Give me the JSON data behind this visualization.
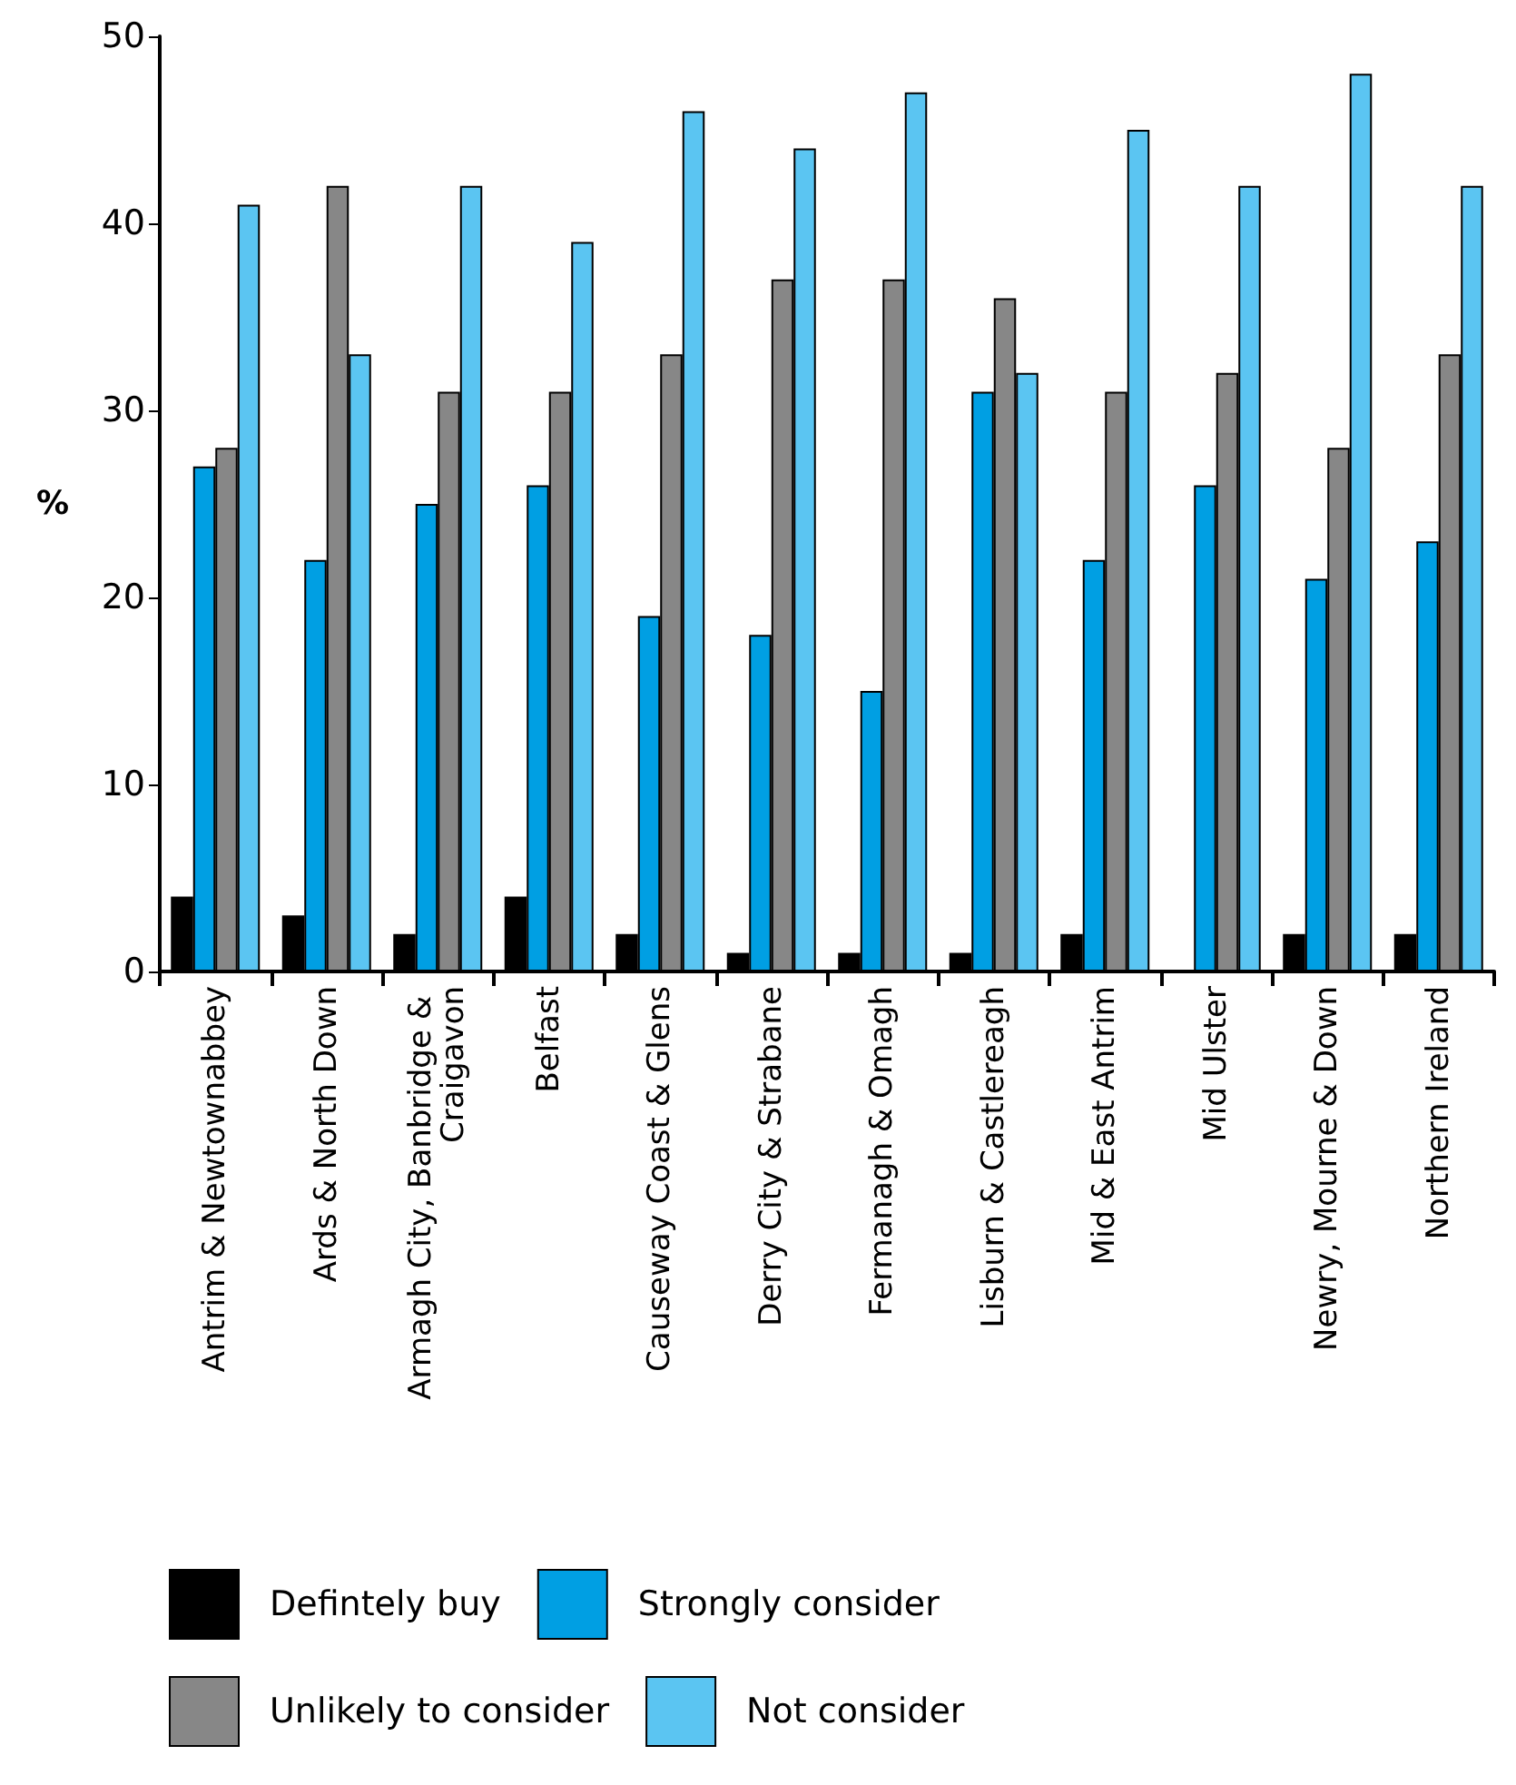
{
  "chart_data": {
    "type": "bar",
    "ylabel": "%",
    "categories": [
      "Antrim & Newtownabbey",
      "Ards & North Down",
      "Armagh City, Banbridge & Craigavon",
      "Belfast",
      "Causeway Coast & Glens",
      "Derry City & Strabane",
      "Fermanagh & Omagh",
      "Lisburn & Castlereagh",
      "Mid & East Antrim",
      "Mid Ulster",
      "Newry, Mourne & Down",
      "Northern Ireland"
    ],
    "series": [
      {
        "name": "Defintely buy",
        "color": "#000000",
        "values": [
          4,
          3,
          2,
          4,
          2,
          1,
          1,
          1,
          2,
          0,
          2,
          2
        ]
      },
      {
        "name": "Strongly consider",
        "color": "#009fe3",
        "values": [
          27,
          22,
          25,
          26,
          19,
          18,
          15,
          31,
          22,
          26,
          21,
          23
        ]
      },
      {
        "name": "Unlikely to consider",
        "color": "#878787",
        "values": [
          28,
          42,
          31,
          31,
          33,
          37,
          37,
          36,
          31,
          32,
          28,
          33
        ]
      },
      {
        "name": "Not consider",
        "color": "#5bc5f2",
        "values": [
          41,
          33,
          42,
          39,
          46,
          44,
          47,
          32,
          45,
          42,
          48,
          42
        ]
      }
    ],
    "ylim": [
      0,
      50
    ],
    "yticks": [
      0,
      10,
      20,
      30,
      40,
      50
    ],
    "grid": false,
    "legend": "bottom"
  }
}
